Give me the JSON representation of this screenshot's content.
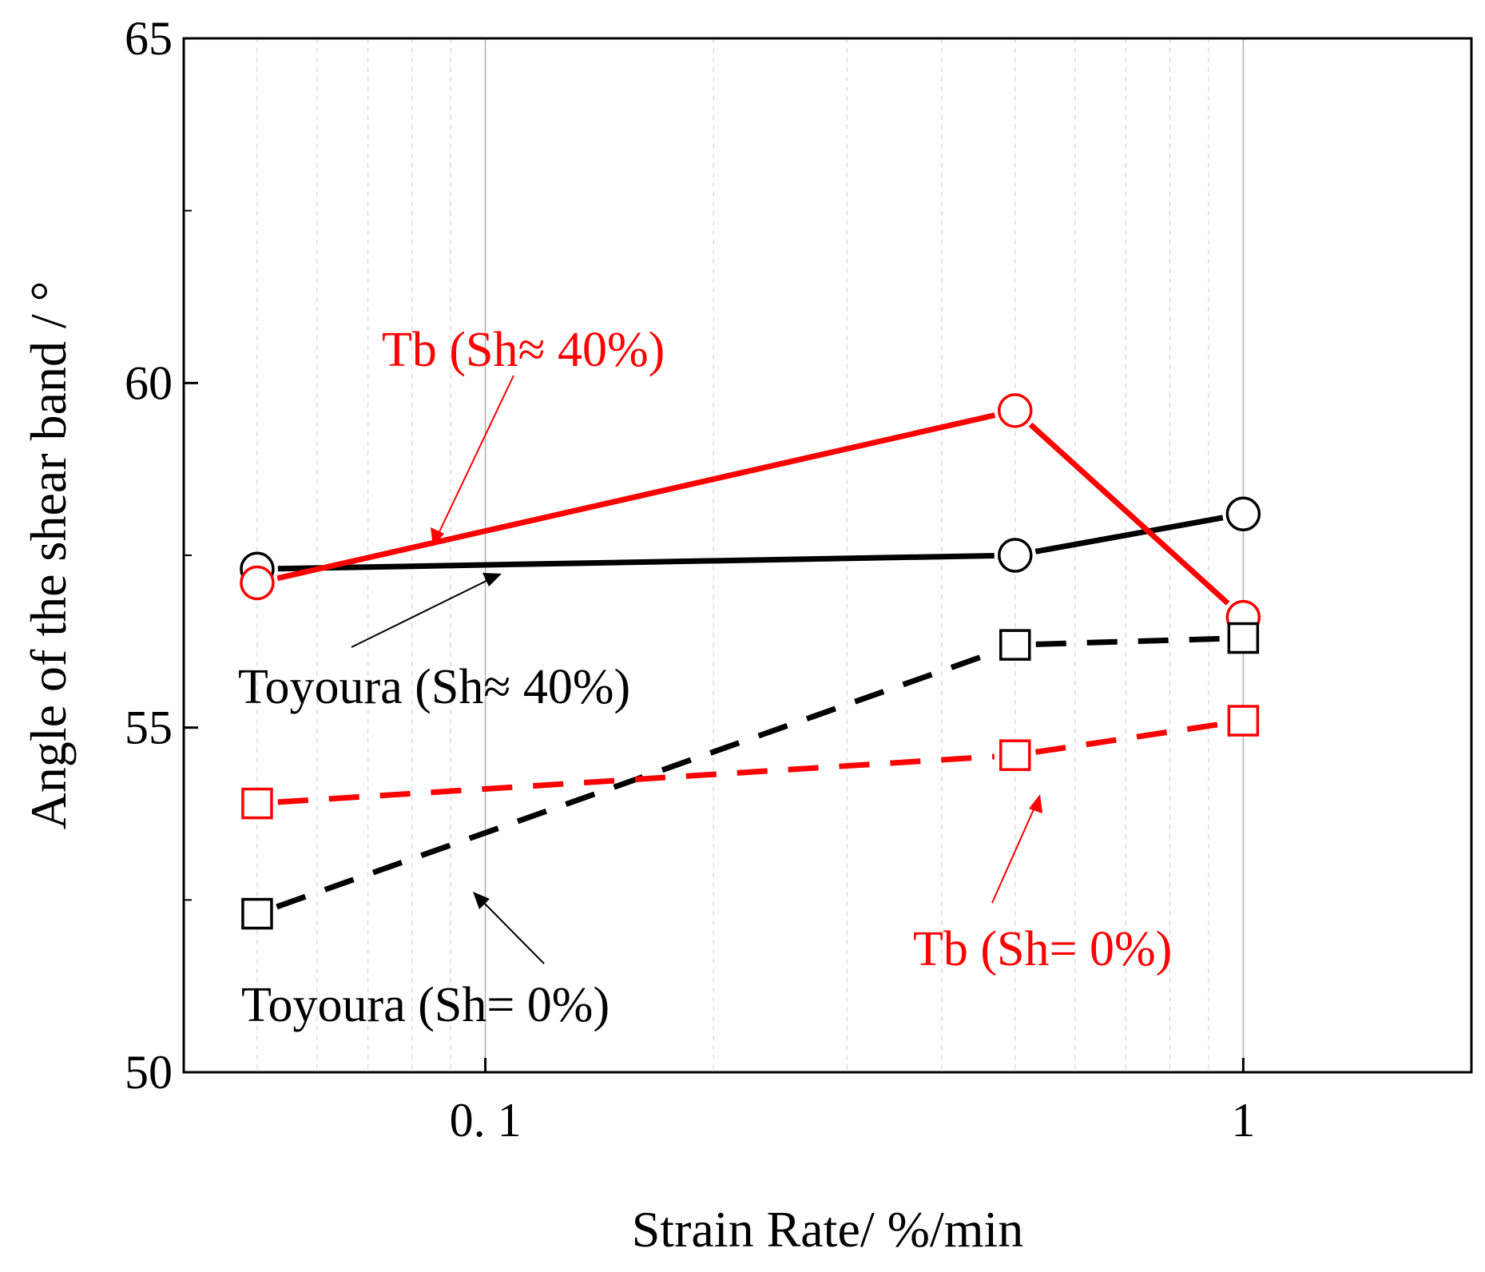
{
  "chart_data": {
    "type": "line",
    "title": "",
    "xlabel": "Strain Rate/ %/min",
    "ylabel": "Angle of the shear band / °",
    "xscale": "log",
    "xlim": [
      0.04,
      2
    ],
    "ylim": [
      50,
      65
    ],
    "x_ticks": [
      {
        "value": 0.1,
        "label": "0. 1"
      },
      {
        "value": 1,
        "label": "1"
      }
    ],
    "y_ticks": [
      {
        "value": 50,
        "label": "50"
      },
      {
        "value": 55,
        "label": "55"
      },
      {
        "value": 60,
        "label": "60"
      },
      {
        "value": 65,
        "label": "65"
      }
    ],
    "y_minor_ticks": [
      52.5,
      57.5,
      62.5
    ],
    "grid": "vertical",
    "series": [
      {
        "id": "toyoura-sh40",
        "name": "Toyoura (Sh≈ 40%)",
        "x": [
          0.05,
          0.5,
          1
        ],
        "y": [
          57.3,
          57.5,
          58.1
        ],
        "color": "#000000",
        "line": "solid",
        "marker": "circle"
      },
      {
        "id": "tb-sh40",
        "name": "Tb (Sh≈ 40%)",
        "x": [
          0.05,
          0.5,
          1
        ],
        "y": [
          57.1,
          59.6,
          56.6
        ],
        "color": "#ff0000",
        "line": "solid",
        "marker": "circle"
      },
      {
        "id": "toyoura-sh0",
        "name": "Toyoura (Sh= 0%)",
        "x": [
          0.05,
          0.5,
          1
        ],
        "y": [
          52.3,
          56.2,
          56.3
        ],
        "color": "#000000",
        "line": "dashed",
        "marker": "square"
      },
      {
        "id": "tb-sh0",
        "name": "Tb (Sh= 0%)",
        "x": [
          0.05,
          0.5,
          1
        ],
        "y": [
          53.9,
          54.6,
          55.1
        ],
        "color": "#ff0000",
        "line": "dashed",
        "marker": "square"
      }
    ],
    "annotations": [
      {
        "id": "tb-sh40",
        "text": "Tb (Sh≈ 40%)",
        "color": "#ff0000"
      },
      {
        "id": "toyoura-sh40",
        "text": "Toyoura (Sh≈ 40%)",
        "color": "#000000"
      },
      {
        "id": "tb-sh0",
        "text": "Tb (Sh= 0%)",
        "color": "#ff0000"
      },
      {
        "id": "toyoura-sh0",
        "text": "Toyoura (Sh= 0%)",
        "color": "#000000"
      }
    ]
  }
}
